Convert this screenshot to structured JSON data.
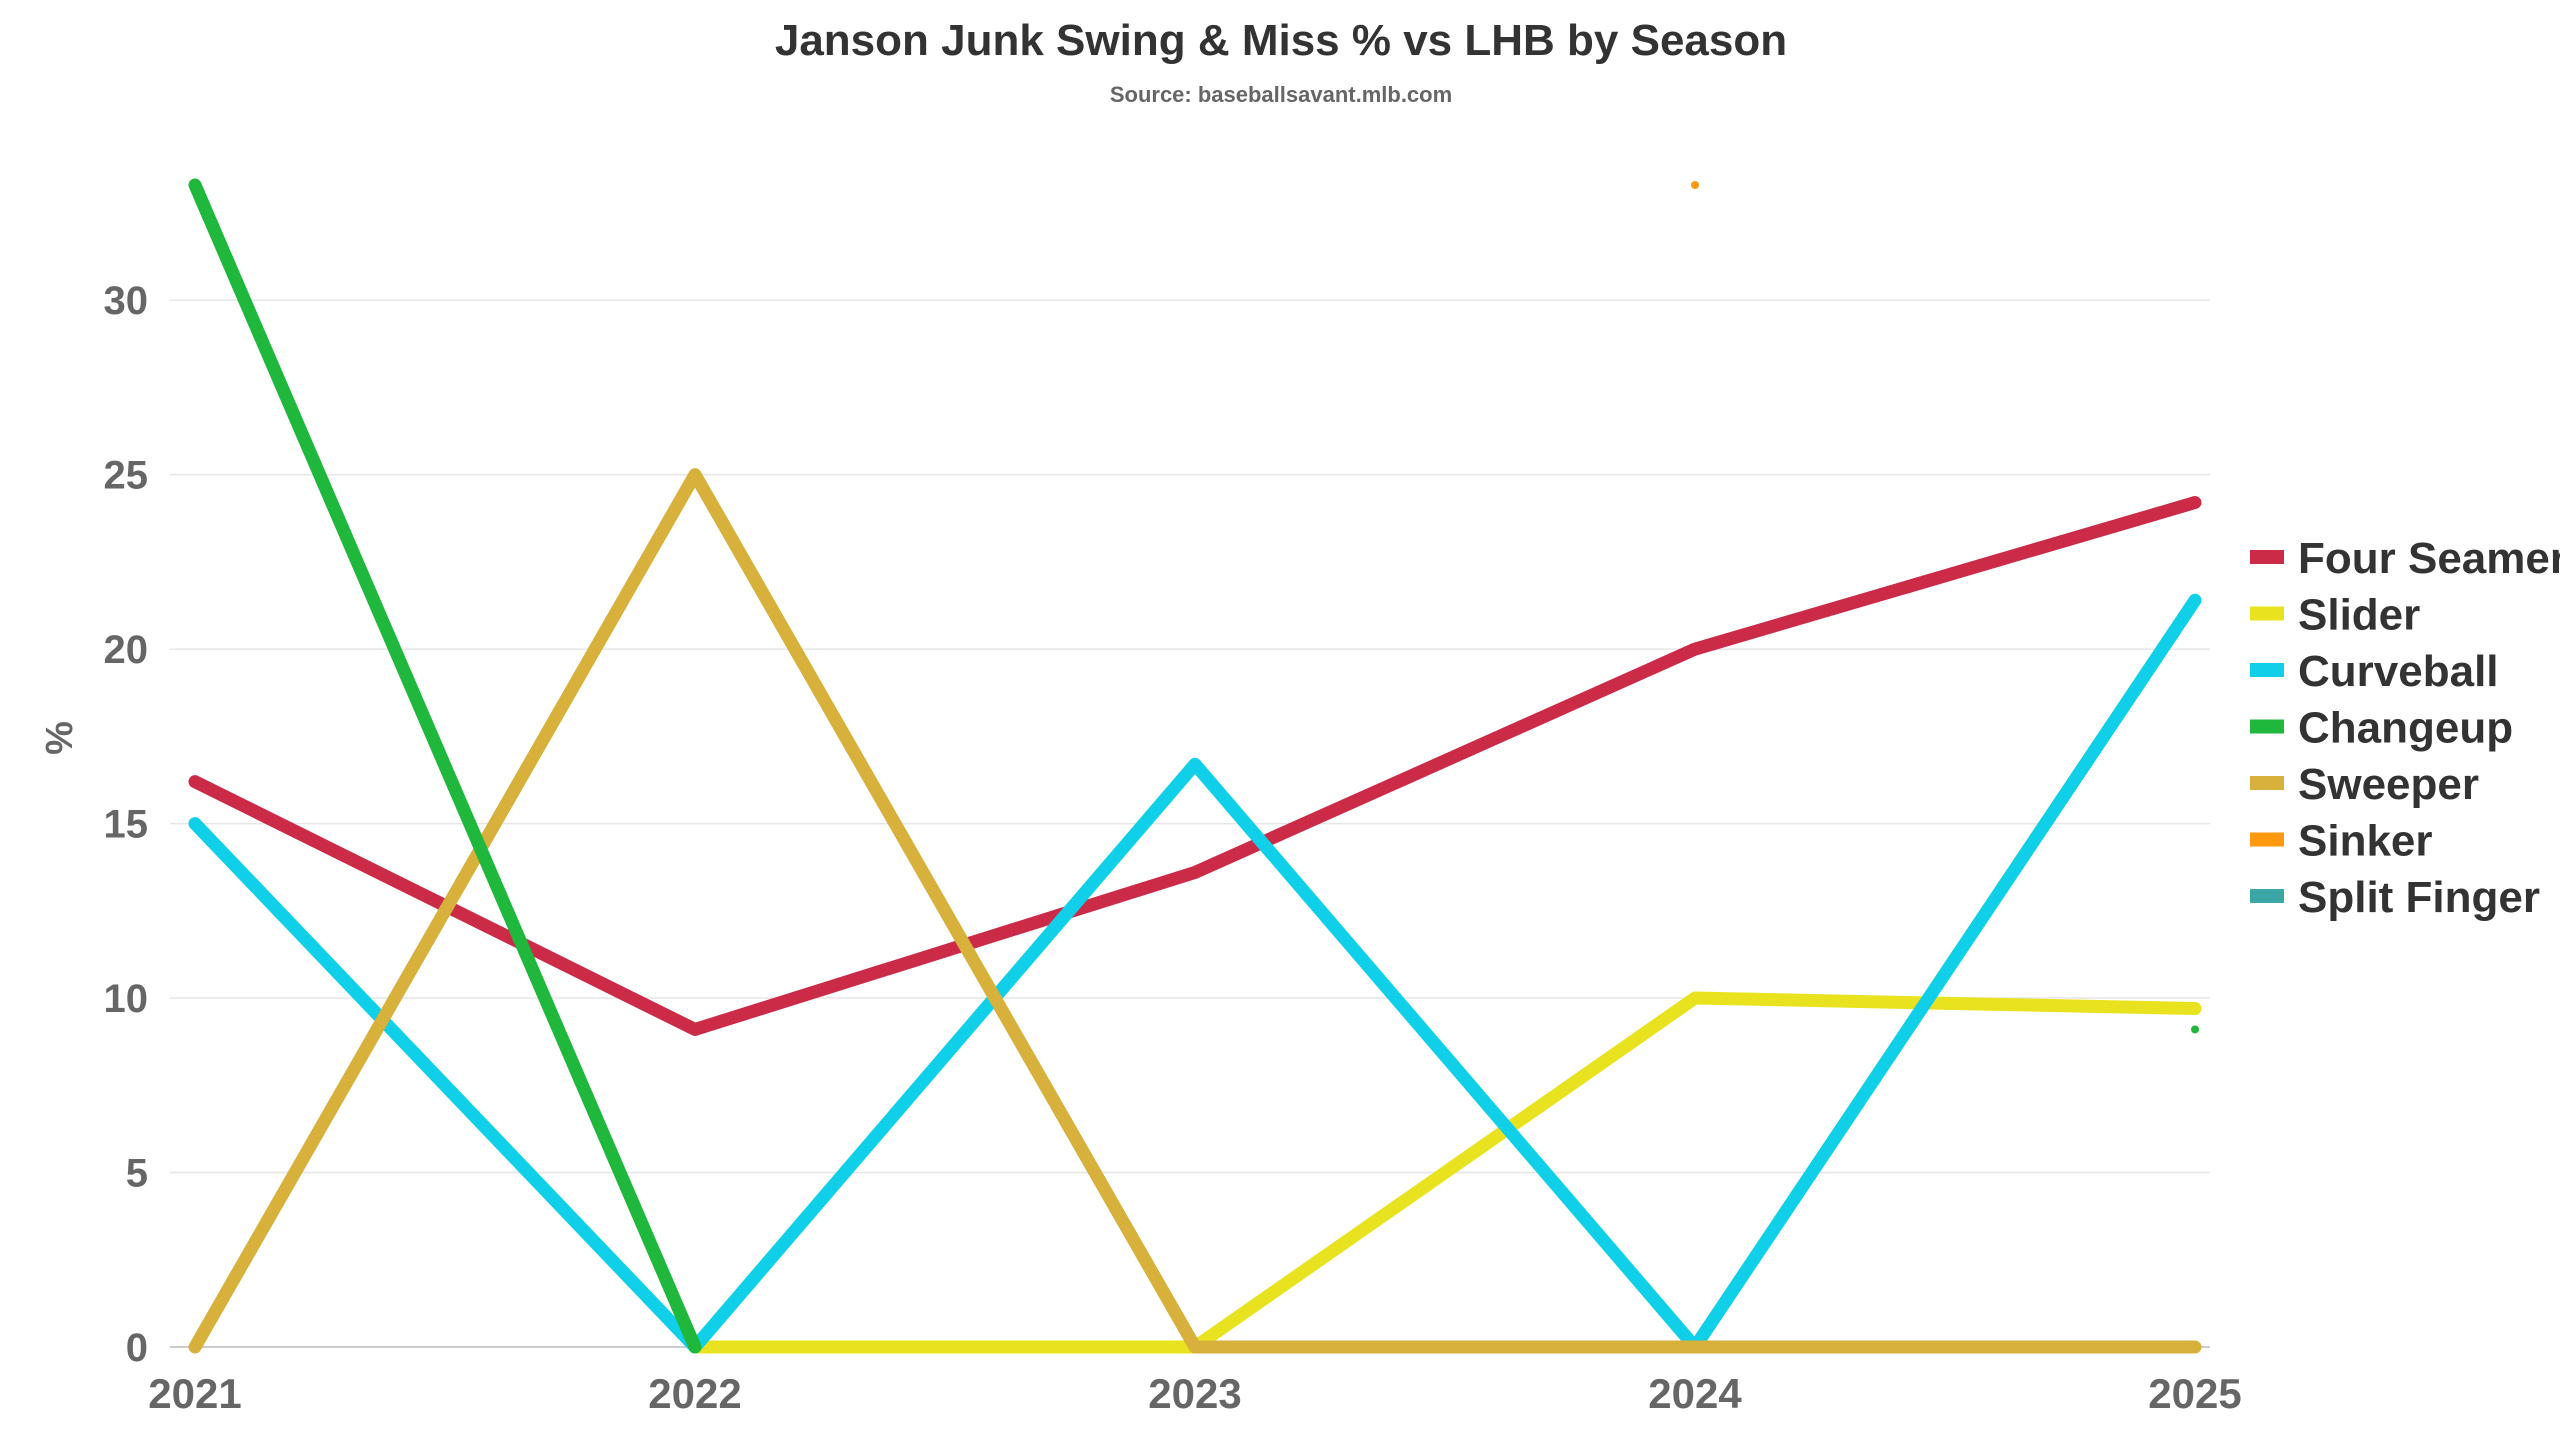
{
  "chart_data": {
    "type": "line",
    "title": "Janson Junk Swing & Miss % vs LHB by Season",
    "subtitle": "Source: baseballsavant.mlb.com",
    "xlabel": "",
    "ylabel": "%",
    "categories": [
      "2021",
      "2022",
      "2023",
      "2024",
      "2025"
    ],
    "ylim": [
      0,
      33.3
    ],
    "yticks": [
      0,
      5,
      10,
      15,
      20,
      25,
      30
    ],
    "grid": true,
    "legend_position": "right",
    "series": [
      {
        "name": "Four Seamer",
        "color": "#cc2b48",
        "values": [
          16.2,
          9.1,
          13.6,
          20.0,
          24.2
        ]
      },
      {
        "name": "Slider",
        "color": "#e8e31e",
        "values": [
          null,
          0,
          0,
          10.0,
          9.7
        ]
      },
      {
        "name": "Curveball",
        "color": "#0fd0e8",
        "values": [
          15.0,
          0,
          16.7,
          0,
          21.4
        ]
      },
      {
        "name": "Changeup",
        "color": "#1fb83c",
        "values": [
          33.3,
          0,
          null,
          null,
          9.1
        ]
      },
      {
        "name": "Sweeper",
        "color": "#d8b03c",
        "values": [
          0,
          25.0,
          0,
          0,
          0
        ]
      },
      {
        "name": "Sinker",
        "color": "#ff9a10",
        "values": [
          null,
          null,
          null,
          33.3,
          null
        ]
      },
      {
        "name": "Split Finger",
        "color": "#3aa6a6",
        "values": [
          null,
          null,
          null,
          null,
          null
        ]
      }
    ]
  }
}
